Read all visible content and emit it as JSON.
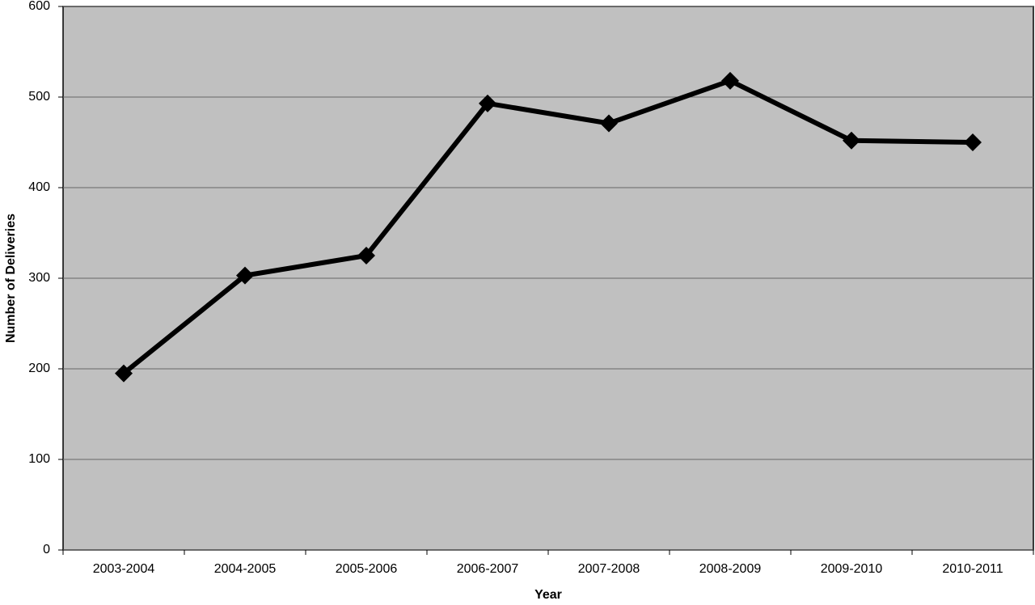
{
  "chart_data": {
    "type": "line",
    "x_label": "Year",
    "y_label": "Number of Deliveries",
    "categories": [
      "2003-2004",
      "2004-2005",
      "2005-2006",
      "2006-2007",
      "2007-2008",
      "2008-2009",
      "2009-2010",
      "2010-2011"
    ],
    "values": [
      195,
      303,
      325,
      493,
      471,
      518,
      452,
      450
    ],
    "color": "#000000",
    "ylim": [
      0,
      600
    ],
    "yticks": [
      0,
      100,
      200,
      300,
      400,
      500,
      600
    ],
    "grid": true
  }
}
